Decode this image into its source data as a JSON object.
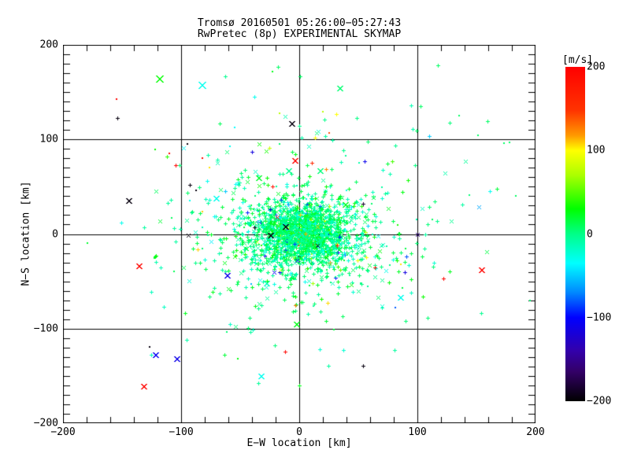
{
  "title": {
    "line1": "Tromsø 20160501 05:26:00−05:27:43",
    "line2": "RwPretec (8p) EXPERIMENTAL SKYMAP"
  },
  "axes": {
    "x": {
      "label": "E−W location [km]",
      "min": -200,
      "max": 200,
      "ticks": [
        -200,
        -100,
        0,
        100,
        200
      ],
      "tick_labels": [
        "−200",
        "−100",
        "0",
        "100",
        "200"
      ],
      "minor_step": 20
    },
    "y": {
      "label": "N−S location [km]",
      "min": -200,
      "max": 200,
      "ticks": [
        -200,
        -100,
        0,
        100,
        200
      ],
      "tick_labels": [
        "−200",
        "−100",
        "0",
        "100",
        "200"
      ],
      "minor_step": 10
    }
  },
  "colorbar": {
    "label": "[m/s]",
    "min": -200,
    "max": 200,
    "ticks": [
      200,
      100,
      0,
      -100,
      -200
    ],
    "tick_labels": [
      "200",
      "100",
      "0",
      "−100",
      "−200"
    ],
    "stops": [
      {
        "v": 200,
        "c": "#FF0000"
      },
      {
        "v": 148,
        "c": "#FF3300"
      },
      {
        "v": 118,
        "c": "#FF9900"
      },
      {
        "v": 100,
        "c": "#FFFF00"
      },
      {
        "v": 70,
        "c": "#AAFF00"
      },
      {
        "v": 30,
        "c": "#00FF00"
      },
      {
        "v": 0,
        "c": "#00FF88"
      },
      {
        "v": -35,
        "c": "#00FFFF"
      },
      {
        "v": -70,
        "c": "#0088FF"
      },
      {
        "v": -100,
        "c": "#0000FF"
      },
      {
        "v": -140,
        "c": "#3300AA"
      },
      {
        "v": -165,
        "c": "#330066"
      },
      {
        "v": -200,
        "c": "#000000"
      }
    ]
  },
  "colors": {
    "background": "#FFFFFF",
    "axis": "#000000",
    "text": "#000000"
  },
  "chart_data": {
    "type": "scatter",
    "title": "Tromsø 20160501 05:26:00−05:27:43 / RwPretec (8p) EXPERIMENTAL SKYMAP",
    "xlabel": "E−W location [km]",
    "ylabel": "N−S location [km]",
    "color_units": "m/s",
    "xlim": [
      -200,
      200
    ],
    "ylim": [
      -200,
      200
    ],
    "vlim": [
      -200,
      200
    ],
    "grid": true,
    "description": "Dense cloud of meteor-echo points centered near (0,0), mostly spring-green/cyan (−30..+40 m/s), thinning outward; sparse multicolor outliers across field.",
    "cluster": {
      "seed": 1337,
      "groups": [
        {
          "n": 1500,
          "cx": 2,
          "cy": 0,
          "sx": 20,
          "sy": 16
        },
        {
          "n": 700,
          "cx": 0,
          "cy": -4,
          "sx": 44,
          "sy": 33
        },
        {
          "n": 190,
          "cx": 4,
          "cy": 4,
          "sx": 85,
          "sy": 62
        }
      ],
      "velocity": {
        "mean": 2,
        "sigma": 16,
        "p_wide": 0.06,
        "wide_range": [
          -110,
          130
        ],
        "p_extreme": 0.012
      },
      "marker_mix": {
        "dot": 0.1,
        "plus": 0.72,
        "x": 0.18
      }
    },
    "outliers": [
      {
        "x": -119,
        "y": 164,
        "v": 30,
        "m": "x",
        "a": 4
      },
      {
        "x": -83,
        "y": 158,
        "v": -30,
        "m": "x",
        "a": 4
      },
      {
        "x": -155,
        "y": 143,
        "v": 195,
        "m": "dot",
        "a": 1
      },
      {
        "x": -154,
        "y": 123,
        "v": -195,
        "m": "plus",
        "a": 2
      },
      {
        "x": -122,
        "y": 89,
        "v": 30,
        "m": "dot",
        "a": 1
      },
      {
        "x": -110,
        "y": 85,
        "v": 195,
        "m": "dot",
        "a": 1
      },
      {
        "x": -105,
        "y": 73,
        "v": 195,
        "m": "plus",
        "a": 2
      },
      {
        "x": -95,
        "y": 95,
        "v": -195,
        "m": "dot",
        "a": 1
      },
      {
        "x": -82,
        "y": 80,
        "v": 195,
        "m": "dot",
        "a": 1
      },
      {
        "x": -76,
        "y": 70,
        "v": 105,
        "m": "dot",
        "a": 1
      },
      {
        "x": -93,
        "y": 52,
        "v": -195,
        "m": "plus",
        "a": 2
      },
      {
        "x": -87,
        "y": 46,
        "v": -195,
        "m": "dot",
        "a": 1
      },
      {
        "x": -59,
        "y": 93,
        "v": -30,
        "m": "dot",
        "a": 1
      },
      {
        "x": -55,
        "y": 113,
        "v": -35,
        "m": "dot",
        "a": 1
      },
      {
        "x": -145,
        "y": 35,
        "v": -195,
        "m": "x",
        "a": 3
      },
      {
        "x": -71,
        "y": 38,
        "v": -30,
        "m": "x",
        "a": 3
      },
      {
        "x": -93,
        "y": 35,
        "v": -30,
        "m": "dot",
        "a": 1
      },
      {
        "x": -136,
        "y": -34,
        "v": 195,
        "m": "x",
        "a": 3
      },
      {
        "x": -94,
        "y": -1,
        "v": -195,
        "m": "x",
        "a": 2
      },
      {
        "x": -61,
        "y": -44,
        "v": -110,
        "m": "x",
        "a": 3
      },
      {
        "x": -122,
        "y": -128,
        "v": -105,
        "m": "x",
        "a": 3
      },
      {
        "x": -104,
        "y": -132,
        "v": -110,
        "m": "x",
        "a": 3
      },
      {
        "x": -127,
        "y": -119,
        "v": -195,
        "m": "dot",
        "a": 1
      },
      {
        "x": -132,
        "y": -161,
        "v": 195,
        "m": "x",
        "a": 3
      },
      {
        "x": -12,
        "y": -124,
        "v": 195,
        "m": "plus",
        "a": 2
      },
      {
        "x": -3,
        "y": -95,
        "v": 25,
        "m": "x",
        "a": 3
      },
      {
        "x": 54,
        "y": -139,
        "v": -195,
        "m": "plus",
        "a": 2
      },
      {
        "x": 85,
        "y": -67,
        "v": -30,
        "m": "x",
        "a": 3
      },
      {
        "x": 122,
        "y": -47,
        "v": 195,
        "m": "plus",
        "a": 2
      },
      {
        "x": 154,
        "y": -38,
        "v": 195,
        "m": "x",
        "a": 3
      },
      {
        "x": 81,
        "y": -78,
        "v": -80,
        "m": "dot",
        "a": 1
      },
      {
        "x": 86,
        "y": -32,
        "v": 105,
        "m": "dot",
        "a": 1
      },
      {
        "x": 100,
        "y": 0,
        "v": -150,
        "m": "x",
        "a": 2
      },
      {
        "x": 117,
        "y": 178,
        "v": 8,
        "m": "plus",
        "a": 2
      },
      {
        "x": 103,
        "y": 135,
        "v": 8,
        "m": "plus",
        "a": 2
      },
      {
        "x": 135,
        "y": 125,
        "v": 8,
        "m": "dot",
        "a": 1
      },
      {
        "x": 159,
        "y": 119,
        "v": 8,
        "m": "plus",
        "a": 2
      },
      {
        "x": 151,
        "y": 104,
        "v": 8,
        "m": "dot",
        "a": 1
      },
      {
        "x": 99,
        "y": 109,
        "v": 8,
        "m": "plus",
        "a": 2
      },
      {
        "x": 173,
        "y": 96,
        "v": 8,
        "m": "dot",
        "a": 1
      },
      {
        "x": 178,
        "y": 97,
        "v": 8,
        "m": "dot",
        "a": 1
      },
      {
        "x": -38,
        "y": 145,
        "v": -30,
        "m": "plus",
        "a": 2
      },
      {
        "x": -7,
        "y": 117,
        "v": -195,
        "m": "x",
        "a": 3
      },
      {
        "x": 34,
        "y": 154,
        "v": 5,
        "m": "x",
        "a": 3
      },
      {
        "x": -17,
        "y": 128,
        "v": 75,
        "m": "dot",
        "a": 1
      },
      {
        "x": 20,
        "y": 129,
        "v": 75,
        "m": "dot",
        "a": 1
      },
      {
        "x": 31,
        "y": 127,
        "v": 100,
        "m": "plus",
        "a": 2
      },
      {
        "x": 25,
        "y": 107,
        "v": 140,
        "m": "dot",
        "a": 1
      },
      {
        "x": 13,
        "y": 102,
        "v": 100,
        "m": "plus",
        "a": 2
      },
      {
        "x": -4,
        "y": 78,
        "v": 195,
        "m": "x",
        "a": 3
      },
      {
        "x": -40,
        "y": 87,
        "v": -115,
        "m": "plus",
        "a": 2
      },
      {
        "x": -18,
        "y": 177,
        "v": 8,
        "m": "plus",
        "a": 2
      },
      {
        "x": 1,
        "y": 167,
        "v": 8,
        "m": "plus",
        "a": 2
      },
      {
        "x": -23,
        "y": 172,
        "v": 25,
        "m": "dot",
        "a": 1
      },
      {
        "x": 183,
        "y": 40,
        "v": 8,
        "m": "dot",
        "a": 1
      },
      {
        "x": -33,
        "y": -150,
        "v": -30,
        "m": "x",
        "a": 3
      },
      {
        "x": 0,
        "y": -160,
        "v": 25,
        "m": "plus",
        "a": 2
      },
      {
        "x": 152,
        "y": 29,
        "v": -60,
        "m": "x",
        "a": 2
      },
      {
        "x": -12,
        "y": 8,
        "v": -195,
        "m": "x",
        "a": 3
      },
      {
        "x": -25,
        "y": -1,
        "v": -195,
        "m": "x",
        "a": 3
      },
      {
        "x": 15,
        "y": -12,
        "v": -195,
        "m": "x",
        "a": 2
      },
      {
        "x": -19,
        "y": 18,
        "v": 195,
        "m": "x",
        "a": 2
      },
      {
        "x": -17,
        "y": -40,
        "v": -110,
        "m": "plus",
        "a": 2
      },
      {
        "x": -2,
        "y": -28,
        "v": -110,
        "m": "x",
        "a": 2
      },
      {
        "x": -16,
        "y": -38,
        "v": 80,
        "m": "x",
        "a": 2
      }
    ]
  }
}
